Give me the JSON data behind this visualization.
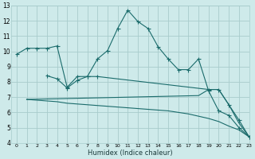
{
  "xlabel": "Humidex (Indice chaleur)",
  "bg_color": "#ceeaea",
  "grid_color": "#a8cccc",
  "line_color": "#1a6b6b",
  "xlim": [
    -0.5,
    23
  ],
  "ylim": [
    4,
    13
  ],
  "xticks": [
    0,
    1,
    2,
    3,
    4,
    5,
    6,
    7,
    8,
    9,
    10,
    11,
    12,
    13,
    14,
    15,
    16,
    17,
    18,
    19,
    20,
    21,
    22,
    23
  ],
  "yticks": [
    4,
    5,
    6,
    7,
    8,
    9,
    10,
    11,
    12,
    13
  ],
  "line1_x": [
    0,
    1,
    2,
    3,
    4,
    5,
    6,
    7,
    8,
    9,
    10,
    11,
    12,
    13,
    14,
    15,
    16,
    17,
    18,
    19,
    20,
    21,
    22,
    23
  ],
  "line1_y": [
    9.8,
    10.2,
    10.2,
    10.2,
    10.35,
    7.65,
    8.35,
    8.35,
    9.5,
    10.05,
    11.5,
    12.7,
    11.95,
    11.5,
    10.3,
    9.5,
    8.8,
    8.8,
    9.5,
    7.4,
    6.1,
    5.8,
    5.0,
    4.4
  ],
  "line2_x": [
    3,
    4,
    5,
    6,
    7,
    8,
    19,
    20,
    21,
    22,
    23
  ],
  "line2_y": [
    8.4,
    8.2,
    7.6,
    8.1,
    8.35,
    8.35,
    7.5,
    7.5,
    6.5,
    5.5,
    4.4
  ],
  "line3_x": [
    1,
    18,
    19,
    20,
    21,
    22,
    23
  ],
  "line3_y": [
    6.85,
    7.1,
    7.5,
    7.5,
    6.5,
    5.3,
    4.4
  ],
  "line4_x": [
    1,
    2,
    3,
    4,
    5,
    6,
    7,
    8,
    9,
    10,
    11,
    12,
    13,
    14,
    15,
    16,
    17,
    18,
    19,
    20,
    21,
    22,
    23
  ],
  "line4_y": [
    6.85,
    6.8,
    6.75,
    6.7,
    6.6,
    6.55,
    6.5,
    6.45,
    6.4,
    6.35,
    6.3,
    6.25,
    6.2,
    6.15,
    6.1,
    6.0,
    5.9,
    5.75,
    5.6,
    5.4,
    5.1,
    4.85,
    4.4
  ]
}
